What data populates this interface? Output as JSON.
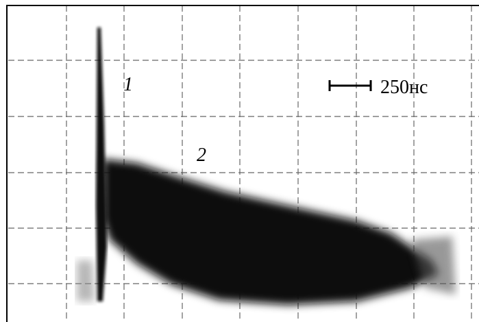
{
  "labels": {
    "trace_1": "1",
    "trace_2": "2",
    "scale": "250нс"
  }
}
